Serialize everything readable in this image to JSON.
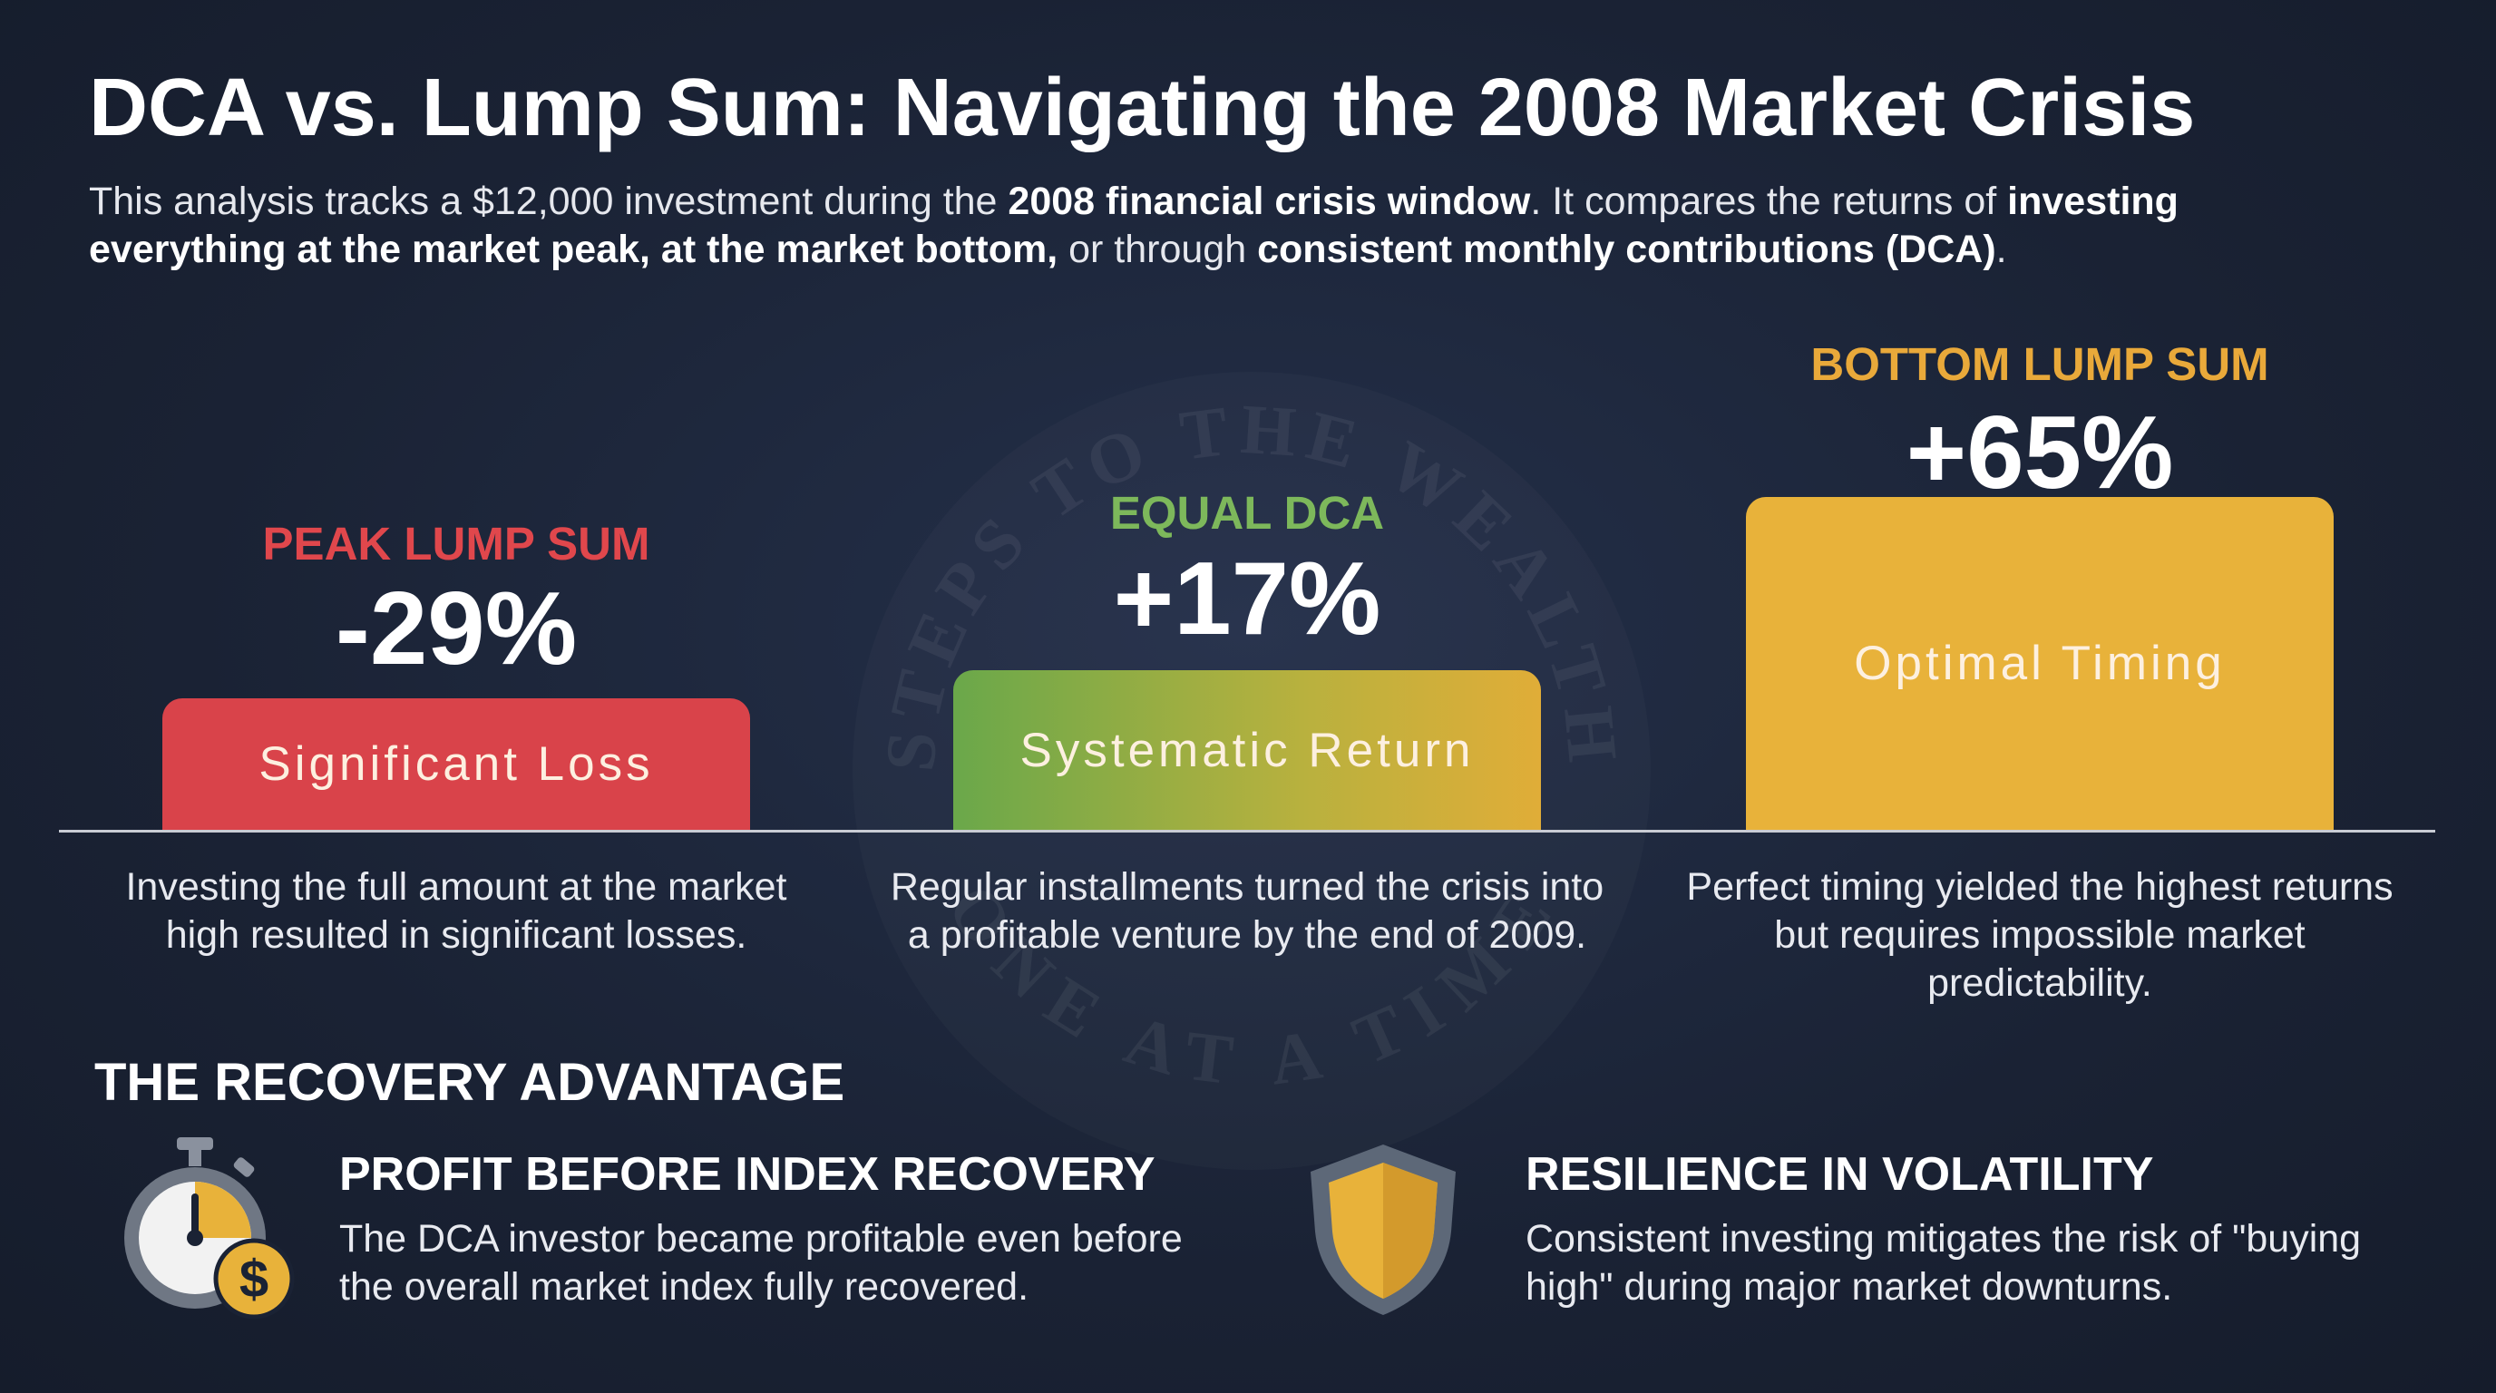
{
  "header": {
    "title": "DCA vs. Lump Sum: Navigating the 2008 Market Crisis",
    "intro": [
      {
        "text": "This analysis tracks a $12,000 investment during the ",
        "bold": false
      },
      {
        "text": "2008 financial crisis window",
        "bold": true
      },
      {
        "text": ". It compares the returns of ",
        "bold": false
      },
      {
        "text": "investing everything at the market peak, at the market bottom,",
        "bold": true
      },
      {
        "text": " or through ",
        "bold": false
      },
      {
        "text": "consistent monthly contributions (DCA)",
        "bold": true
      },
      {
        "text": ".",
        "bold": false
      }
    ]
  },
  "watermark": {
    "top": "STEPS TO THE WEALTH",
    "bottom": "ONE AT A TIME"
  },
  "cards": [
    {
      "label": "PEAK LUMP SUM",
      "value": "-29%",
      "bar_text": "Significant Loss",
      "caption": "Investing the full amount at the market high resulted in significant losses.",
      "label_color": "#e0474c",
      "bar_color": "#d9434a"
    },
    {
      "label": "EQUAL DCA",
      "value": "+17%",
      "bar_text": "Systematic Return",
      "caption": "Regular installments turned the crisis into a profitable venture by the end of 2009.",
      "label_color": "#7db85b",
      "bar_color": "linear-gradient(90deg,#6aa84a,#b9b13e 60%,#e0ad38)"
    },
    {
      "label": "BOTTOM LUMP SUM",
      "value": "+65%",
      "bar_text": "Optimal Timing",
      "caption": "Perfect timing yielded the highest returns but requires impossible market predictability.",
      "label_color": "#e9a93a",
      "bar_color": "#e8b23a"
    }
  ],
  "section": {
    "title": "THE RECOVERY ADVANTAGE",
    "features": [
      {
        "title": "PROFIT BEFORE INDEX RECOVERY",
        "text": "The DCA investor became profitable even before the overall market index fully recovered."
      },
      {
        "title": "RESILIENCE IN VOLATILITY",
        "text": "Consistent investing mitigates the risk of \"buying high\" during major market downturns."
      }
    ]
  }
}
